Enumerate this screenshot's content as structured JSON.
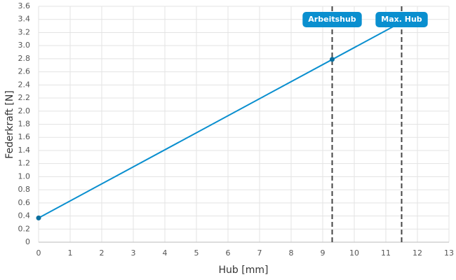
{
  "chart_data": {
    "type": "line",
    "xlabel": "Hub [mm]",
    "ylabel": "Federkraft [N]",
    "series": [
      {
        "color": "#0a8fcf",
        "x": [
          0,
          11.5
        ],
        "values": [
          0.37,
          3.36
        ]
      }
    ],
    "points": {
      "color": "#0a6f9f",
      "x": [
        0,
        9.3
      ],
      "values": [
        0.37,
        2.79
      ]
    },
    "vlines": [
      {
        "x": 9.3,
        "label": "Arbeitshub"
      },
      {
        "x": 11.5,
        "label": "Max. Hub"
      }
    ],
    "vline_color": "#444444",
    "label_color": "#0a8fcf",
    "xlim": [
      0,
      13
    ],
    "xticks": [
      0,
      1,
      2,
      3,
      4,
      5,
      6,
      7,
      8,
      9,
      10,
      11,
      12,
      13
    ],
    "ylim": [
      0,
      3.6
    ],
    "yticks": [
      0,
      0.2,
      0.4,
      0.6,
      0.8,
      {
        "value": 1,
        "label": "1.0"
      },
      1.2,
      1.4,
      1.6,
      1.8,
      {
        "value": 2,
        "label": "2.0"
      },
      2.2,
      2.4,
      2.6,
      2.8,
      {
        "value": 3,
        "label": "3.0"
      },
      3.2,
      3.4,
      3.6
    ],
    "grid": true
  }
}
